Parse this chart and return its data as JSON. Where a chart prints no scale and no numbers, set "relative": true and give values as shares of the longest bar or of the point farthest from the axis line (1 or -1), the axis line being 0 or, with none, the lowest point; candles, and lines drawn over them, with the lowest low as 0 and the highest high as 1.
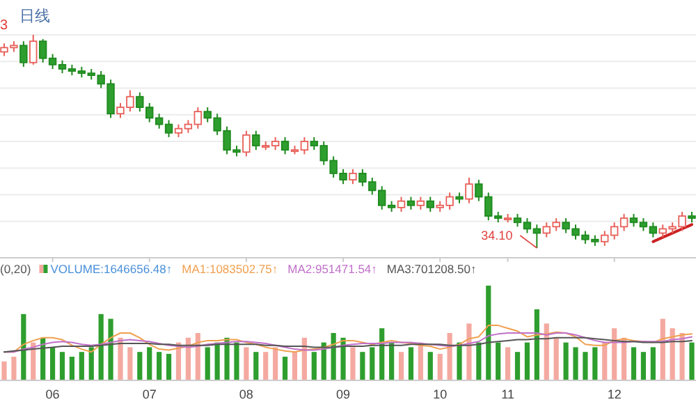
{
  "chart_data": [
    {
      "type": "candlestick",
      "relative": true,
      "grid": "y",
      "tick_labels": false,
      "categories": [
        null,
        null,
        null,
        null,
        null,
        "06",
        null,
        null,
        null,
        null,
        null,
        null,
        null,
        null,
        null,
        "07",
        null,
        null,
        null,
        null,
        null,
        null,
        null,
        null,
        null,
        "08",
        null,
        null,
        null,
        null,
        null,
        null,
        null,
        null,
        null,
        "09",
        null,
        null,
        null,
        null,
        null,
        null,
        null,
        null,
        null,
        "10",
        null,
        null,
        null,
        null,
        null,
        null,
        "11",
        null,
        null,
        null,
        null,
        null,
        null,
        null,
        null,
        null,
        null,
        "12",
        null,
        null,
        null,
        null,
        null,
        null,
        null,
        null
      ],
      "annotations": [
        "日线",
        "3",
        "34.10"
      ],
      "ohlc": [
        [
          0.92,
          0.96,
          0.9,
          0.94
        ],
        [
          0.94,
          0.97,
          0.92,
          0.95
        ],
        [
          0.95,
          0.97,
          0.85,
          0.87
        ],
        [
          0.87,
          1.0,
          0.86,
          0.97
        ],
        [
          0.97,
          0.98,
          0.87,
          0.89
        ],
        [
          0.89,
          0.91,
          0.84,
          0.86
        ],
        [
          0.86,
          0.88,
          0.82,
          0.84
        ],
        [
          0.84,
          0.86,
          0.81,
          0.83
        ],
        [
          0.83,
          0.85,
          0.8,
          0.82
        ],
        [
          0.82,
          0.84,
          0.79,
          0.81
        ],
        [
          0.81,
          0.83,
          0.75,
          0.77
        ],
        [
          0.77,
          0.79,
          0.61,
          0.63
        ],
        [
          0.63,
          0.68,
          0.61,
          0.66
        ],
        [
          0.66,
          0.74,
          0.64,
          0.71
        ],
        [
          0.71,
          0.73,
          0.64,
          0.66
        ],
        [
          0.66,
          0.68,
          0.59,
          0.61
        ],
        [
          0.61,
          0.63,
          0.56,
          0.58
        ],
        [
          0.58,
          0.6,
          0.52,
          0.54
        ],
        [
          0.54,
          0.58,
          0.52,
          0.56
        ],
        [
          0.56,
          0.6,
          0.54,
          0.58
        ],
        [
          0.58,
          0.66,
          0.56,
          0.64
        ],
        [
          0.64,
          0.66,
          0.59,
          0.61
        ],
        [
          0.61,
          0.63,
          0.53,
          0.55
        ],
        [
          0.55,
          0.57,
          0.44,
          0.46
        ],
        [
          0.46,
          0.48,
          0.43,
          0.45
        ],
        [
          0.45,
          0.55,
          0.43,
          0.53
        ],
        [
          0.53,
          0.55,
          0.46,
          0.48
        ],
        [
          0.48,
          0.5,
          0.46,
          0.48
        ],
        [
          0.48,
          0.52,
          0.46,
          0.5
        ],
        [
          0.5,
          0.52,
          0.44,
          0.46
        ],
        [
          0.46,
          0.48,
          0.44,
          0.46
        ],
        [
          0.46,
          0.52,
          0.44,
          0.5
        ],
        [
          0.5,
          0.52,
          0.46,
          0.48
        ],
        [
          0.48,
          0.5,
          0.39,
          0.41
        ],
        [
          0.41,
          0.43,
          0.33,
          0.35
        ],
        [
          0.35,
          0.37,
          0.3,
          0.32
        ],
        [
          0.32,
          0.37,
          0.3,
          0.35
        ],
        [
          0.35,
          0.37,
          0.29,
          0.31
        ],
        [
          0.31,
          0.33,
          0.25,
          0.27
        ],
        [
          0.27,
          0.29,
          0.18,
          0.2
        ],
        [
          0.2,
          0.22,
          0.17,
          0.19
        ],
        [
          0.19,
          0.24,
          0.17,
          0.22
        ],
        [
          0.22,
          0.24,
          0.18,
          0.2
        ],
        [
          0.2,
          0.24,
          0.18,
          0.22
        ],
        [
          0.22,
          0.24,
          0.17,
          0.19
        ],
        [
          0.19,
          0.22,
          0.17,
          0.2
        ],
        [
          0.2,
          0.26,
          0.18,
          0.24
        ],
        [
          0.24,
          0.26,
          0.21,
          0.23
        ],
        [
          0.23,
          0.33,
          0.21,
          0.3
        ],
        [
          0.3,
          0.32,
          0.22,
          0.24
        ],
        [
          0.24,
          0.26,
          0.13,
          0.15
        ],
        [
          0.15,
          0.17,
          0.12,
          0.14
        ],
        [
          0.14,
          0.16,
          0.12,
          0.14
        ],
        [
          0.14,
          0.16,
          0.1,
          0.12
        ],
        [
          0.12,
          0.14,
          0.07,
          0.09
        ],
        [
          0.09,
          0.11,
          0.0,
          0.07
        ],
        [
          0.07,
          0.12,
          0.05,
          0.1
        ],
        [
          0.1,
          0.14,
          0.08,
          0.12
        ],
        [
          0.12,
          0.14,
          0.07,
          0.09
        ],
        [
          0.09,
          0.11,
          0.04,
          0.06
        ],
        [
          0.06,
          0.08,
          0.02,
          0.04
        ],
        [
          0.04,
          0.06,
          0.01,
          0.03
        ],
        [
          0.03,
          0.08,
          0.01,
          0.06
        ],
        [
          0.06,
          0.12,
          0.04,
          0.1
        ],
        [
          0.1,
          0.16,
          0.08,
          0.14
        ],
        [
          0.14,
          0.16,
          0.1,
          0.12
        ],
        [
          0.12,
          0.14,
          0.08,
          0.1
        ],
        [
          0.1,
          0.12,
          0.05,
          0.07
        ],
        [
          0.07,
          0.11,
          0.05,
          0.09
        ],
        [
          0.09,
          0.12,
          0.07,
          0.1
        ],
        [
          0.1,
          0.17,
          0.08,
          0.15
        ],
        [
          0.15,
          0.17,
          0.12,
          0.14
        ]
      ],
      "series": [
        {
          "type": "line",
          "color": "#cc2222",
          "values": [
            null,
            null,
            null,
            null,
            null,
            null,
            null,
            null,
            null,
            null,
            null,
            null,
            null,
            null,
            null,
            null,
            null,
            null,
            null,
            null,
            null,
            null,
            null,
            null,
            null,
            null,
            null,
            null,
            null,
            null,
            null,
            null,
            null,
            null,
            null,
            null,
            null,
            null,
            null,
            null,
            null,
            null,
            null,
            null,
            null,
            null,
            null,
            null,
            null,
            null,
            null,
            null,
            null,
            null,
            null,
            null,
            null,
            null,
            null,
            null,
            null,
            null,
            null,
            null,
            null,
            null,
            null,
            0.03,
            0.05,
            0.07,
            0.09,
            0.11
          ]
        }
      ]
    },
    {
      "type": "bar",
      "relative": true,
      "tick_labels": "x",
      "legend": "top left",
      "categories": [
        null,
        null,
        null,
        null,
        null,
        "06",
        null,
        null,
        null,
        null,
        null,
        null,
        null,
        null,
        null,
        "07",
        null,
        null,
        null,
        null,
        null,
        null,
        null,
        null,
        null,
        "08",
        null,
        null,
        null,
        null,
        null,
        null,
        null,
        null,
        null,
        "09",
        null,
        null,
        null,
        null,
        null,
        null,
        null,
        null,
        null,
        "10",
        null,
        null,
        null,
        null,
        null,
        null,
        "11",
        null,
        null,
        null,
        null,
        null,
        null,
        null,
        null,
        null,
        null,
        "12",
        null,
        null,
        null,
        null,
        null,
        null,
        null,
        null
      ],
      "annotations": [
        "(0,20)"
      ],
      "series": [
        {
          "name": "VOLUME:1646656.48↑",
          "type": "bar",
          "colors": [
            "#f4a9a0",
            "#f4a9a0",
            "#2e9e2e",
            "#f4a9a0",
            "#2e9e2e",
            "#2e9e2e",
            "#2e9e2e",
            "#2e9e2e",
            "#2e9e2e",
            "#2e9e2e",
            "#2e9e2e",
            "#2e9e2e",
            "#f4a9a0",
            "#f4a9a0",
            "#2e9e2e",
            "#2e9e2e",
            "#2e9e2e",
            "#2e9e2e",
            "#f4a9a0",
            "#f4a9a0",
            "#f4a9a0",
            "#2e9e2e",
            "#2e9e2e",
            "#2e9e2e",
            "#2e9e2e",
            "#f4a9a0",
            "#2e9e2e",
            "#f4a9a0",
            "#f4a9a0",
            "#2e9e2e",
            "#f4a9a0",
            "#f4a9a0",
            "#2e9e2e",
            "#2e9e2e",
            "#2e9e2e",
            "#2e9e2e",
            "#f4a9a0",
            "#2e9e2e",
            "#2e9e2e",
            "#2e9e2e",
            "#2e9e2e",
            "#f4a9a0",
            "#2e9e2e",
            "#f4a9a0",
            "#2e9e2e",
            "#f4a9a0",
            "#f4a9a0",
            "#2e9e2e",
            "#f4a9a0",
            "#2e9e2e",
            "#2e9e2e",
            "#2e9e2e",
            "#f4a9a0",
            "#2e9e2e",
            "#2e9e2e",
            "#2e9e2e",
            "#f4a9a0",
            "#f4a9a0",
            "#2e9e2e",
            "#2e9e2e",
            "#2e9e2e",
            "#2e9e2e",
            "#f4a9a0",
            "#f4a9a0",
            "#f4a9a0",
            "#2e9e2e",
            "#2e9e2e",
            "#2e9e2e",
            "#f4a9a0",
            "#f4a9a0",
            "#f4a9a0",
            "#2e9e2e"
          ],
          "values": [
            0.2,
            0.25,
            0.7,
            0.4,
            0.45,
            0.35,
            0.3,
            0.25,
            0.3,
            0.35,
            0.7,
            0.65,
            0.45,
            0.35,
            0.3,
            0.35,
            0.3,
            0.28,
            0.4,
            0.45,
            0.5,
            0.35,
            0.4,
            0.45,
            0.4,
            0.35,
            0.3,
            0.3,
            0.35,
            0.25,
            0.3,
            0.45,
            0.3,
            0.4,
            0.5,
            0.45,
            0.35,
            0.3,
            0.35,
            0.55,
            0.4,
            0.3,
            0.35,
            0.4,
            0.3,
            0.28,
            0.5,
            0.4,
            0.6,
            0.4,
            1.0,
            0.4,
            0.35,
            0.3,
            0.4,
            0.75,
            0.6,
            0.45,
            0.4,
            0.35,
            0.3,
            0.35,
            0.4,
            0.55,
            0.45,
            0.35,
            0.3,
            0.35,
            0.65,
            0.55,
            0.5,
            0.4
          ]
        },
        {
          "name": "MA1:1083502.75↑",
          "type": "line",
          "color": "#f0a050",
          "values": [
            0.3,
            0.3,
            0.38,
            0.42,
            0.45,
            0.45,
            0.43,
            0.37,
            0.33,
            0.3,
            0.38,
            0.45,
            0.5,
            0.5,
            0.45,
            0.38,
            0.33,
            0.32,
            0.34,
            0.36,
            0.4,
            0.42,
            0.42,
            0.43,
            0.43,
            0.4,
            0.38,
            0.35,
            0.33,
            0.31,
            0.3,
            0.32,
            0.33,
            0.35,
            0.38,
            0.42,
            0.42,
            0.4,
            0.38,
            0.4,
            0.42,
            0.4,
            0.39,
            0.37,
            0.36,
            0.33,
            0.35,
            0.38,
            0.44,
            0.46,
            0.58,
            0.58,
            0.55,
            0.52,
            0.46,
            0.48,
            0.49,
            0.51,
            0.5,
            0.46,
            0.38,
            0.37,
            0.37,
            0.42,
            0.44,
            0.42,
            0.41,
            0.4,
            0.44,
            0.46,
            0.48,
            0.49
          ]
        },
        {
          "name": "MA2:951471.54↑",
          "type": "line",
          "color": "#c070c8",
          "values": [
            0.3,
            0.3,
            0.33,
            0.35,
            0.38,
            0.4,
            0.41,
            0.4,
            0.38,
            0.37,
            0.38,
            0.4,
            0.42,
            0.43,
            0.42,
            0.41,
            0.39,
            0.37,
            0.36,
            0.35,
            0.36,
            0.38,
            0.39,
            0.4,
            0.41,
            0.41,
            0.4,
            0.39,
            0.37,
            0.35,
            0.33,
            0.32,
            0.32,
            0.33,
            0.35,
            0.37,
            0.38,
            0.39,
            0.39,
            0.39,
            0.4,
            0.4,
            0.4,
            0.39,
            0.38,
            0.37,
            0.36,
            0.37,
            0.39,
            0.41,
            0.47,
            0.49,
            0.5,
            0.5,
            0.5,
            0.5,
            0.48,
            0.5,
            0.5,
            0.48,
            0.45,
            0.42,
            0.4,
            0.4,
            0.4,
            0.41,
            0.41,
            0.41,
            0.41,
            0.43,
            0.44,
            0.46
          ]
        },
        {
          "name": "MA3:701208.50↑",
          "type": "line",
          "color": "#555555",
          "values": [
            0.3,
            0.31,
            0.32,
            0.33,
            0.34,
            0.35,
            0.36,
            0.36,
            0.36,
            0.36,
            0.37,
            0.38,
            0.39,
            0.39,
            0.39,
            0.39,
            0.38,
            0.38,
            0.37,
            0.37,
            0.37,
            0.37,
            0.38,
            0.38,
            0.38,
            0.38,
            0.38,
            0.37,
            0.37,
            0.36,
            0.36,
            0.36,
            0.35,
            0.35,
            0.35,
            0.36,
            0.36,
            0.36,
            0.37,
            0.37,
            0.37,
            0.37,
            0.38,
            0.38,
            0.38,
            0.38,
            0.37,
            0.37,
            0.37,
            0.38,
            0.4,
            0.41,
            0.42,
            0.43,
            0.43,
            0.44,
            0.44,
            0.45,
            0.45,
            0.45,
            0.45,
            0.44,
            0.43,
            0.42,
            0.41,
            0.41,
            0.4,
            0.4,
            0.4,
            0.41,
            0.41,
            0.42
          ]
        }
      ]
    }
  ]
}
